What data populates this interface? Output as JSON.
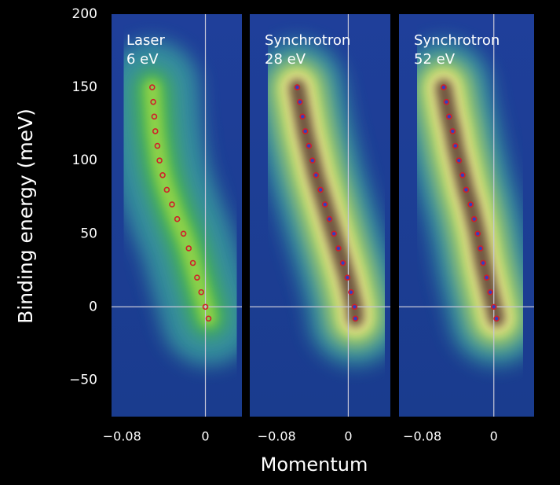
{
  "chart_data": [
    {
      "type": "scatter",
      "title": "Laser",
      "subtitle": "6 eV",
      "ylabel": "Binding energy (meV)",
      "xlim": [
        -0.09,
        0.035
      ],
      "ylim": [
        -75,
        200
      ],
      "xticks": [
        {
          "value": -0.08,
          "label": "−0.08"
        },
        0
      ],
      "yticks": [
        {
          "value": -50,
          "label": "−50"
        },
        0,
        50,
        100,
        150,
        200
      ],
      "series": [
        {
          "color": "#d0202a",
          "x": [
            0.003,
            0.0,
            -0.004,
            -0.008,
            -0.012,
            -0.016,
            -0.021,
            -0.027,
            -0.032,
            -0.037,
            -0.041,
            -0.044,
            -0.046,
            -0.048,
            -0.049,
            -0.05,
            -0.051
          ],
          "values": [
            -8,
            0,
            10,
            20,
            30,
            40,
            50,
            60,
            70,
            80,
            90,
            100,
            110,
            120,
            130,
            140,
            150
          ]
        }
      ]
    },
    {
      "type": "scatter",
      "title": "Synchrotron",
      "subtitle": "28 eV",
      "xlabel": "Momentum",
      "xlim": [
        -0.11,
        0.047
      ],
      "ylim": [
        -75,
        200
      ],
      "xticks": [
        {
          "value": -0.08,
          "label": "−0.08"
        },
        0
      ],
      "series": [
        {
          "color": "#d0202a",
          "x": [
            0.008,
            0.007,
            0.003,
            -0.001,
            -0.006,
            -0.011,
            -0.016,
            -0.021,
            -0.026,
            -0.031,
            -0.036,
            -0.04,
            -0.044,
            -0.048,
            -0.051,
            -0.054,
            -0.057
          ],
          "values": [
            -8,
            0,
            10,
            20,
            30,
            40,
            50,
            60,
            70,
            80,
            90,
            100,
            110,
            120,
            130,
            140,
            150
          ]
        }
      ]
    },
    {
      "type": "scatter",
      "title": "Synchrotron",
      "subtitle": "52 eV",
      "xlim": [
        -0.106,
        0.045
      ],
      "ylim": [
        -75,
        200
      ],
      "xticks": [
        {
          "value": -0.08,
          "label": "−0.08"
        },
        0
      ],
      "series": [
        {
          "color": "#d0202a",
          "x": [
            0.003,
            0.0,
            -0.004,
            -0.008,
            -0.012,
            -0.015,
            -0.018,
            -0.022,
            -0.026,
            -0.031,
            -0.035,
            -0.039,
            -0.043,
            -0.046,
            -0.05,
            -0.053,
            -0.056
          ],
          "values": [
            -8,
            0,
            10,
            20,
            30,
            40,
            50,
            60,
            70,
            80,
            90,
            100,
            110,
            120,
            130,
            140,
            150
          ]
        }
      ]
    }
  ]
}
